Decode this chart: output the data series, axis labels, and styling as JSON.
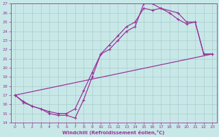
{
  "xlabel": "Windchill (Refroidissement éolien,°C)",
  "bg_color": "#c8e8e8",
  "line_color": "#993399",
  "grid_color": "#aacccc",
  "xlim": [
    -0.5,
    23.5
  ],
  "ylim": [
    14,
    27
  ],
  "xticks": [
    0,
    1,
    2,
    3,
    4,
    5,
    6,
    7,
    8,
    9,
    10,
    11,
    12,
    13,
    14,
    15,
    16,
    17,
    18,
    19,
    20,
    21,
    22,
    23
  ],
  "yticks": [
    14,
    15,
    16,
    17,
    18,
    19,
    20,
    21,
    22,
    23,
    24,
    25,
    26,
    27
  ],
  "line1_x": [
    0,
    1,
    2,
    3,
    4,
    5,
    6,
    7,
    8,
    9,
    10,
    11,
    12,
    13,
    14,
    15,
    16,
    17,
    19,
    20,
    21,
    22,
    23
  ],
  "line1_y": [
    17,
    16.3,
    15.8,
    15.5,
    15.0,
    14.8,
    14.8,
    14.5,
    16.5,
    19.0,
    21.5,
    22.0,
    23.0,
    24.0,
    24.5,
    27.0,
    27.0,
    26.5,
    26.0,
    25.0,
    25.0,
    21.5,
    21.5
  ],
  "line2_x": [
    0,
    1,
    2,
    3,
    4,
    5,
    6,
    7,
    8,
    9,
    10,
    11,
    12,
    13,
    14,
    15,
    16,
    17,
    18,
    19,
    20,
    21,
    22,
    23
  ],
  "line2_y": [
    17,
    16.2,
    15.8,
    15.5,
    15.2,
    15.0,
    15.0,
    15.5,
    17.5,
    19.5,
    21.5,
    22.5,
    23.5,
    24.5,
    25.0,
    26.5,
    26.3,
    26.5,
    26.0,
    25.3,
    24.8,
    25.0,
    21.5,
    21.5
  ],
  "line3_x": [
    0,
    23
  ],
  "line3_y": [
    17,
    21.5
  ]
}
